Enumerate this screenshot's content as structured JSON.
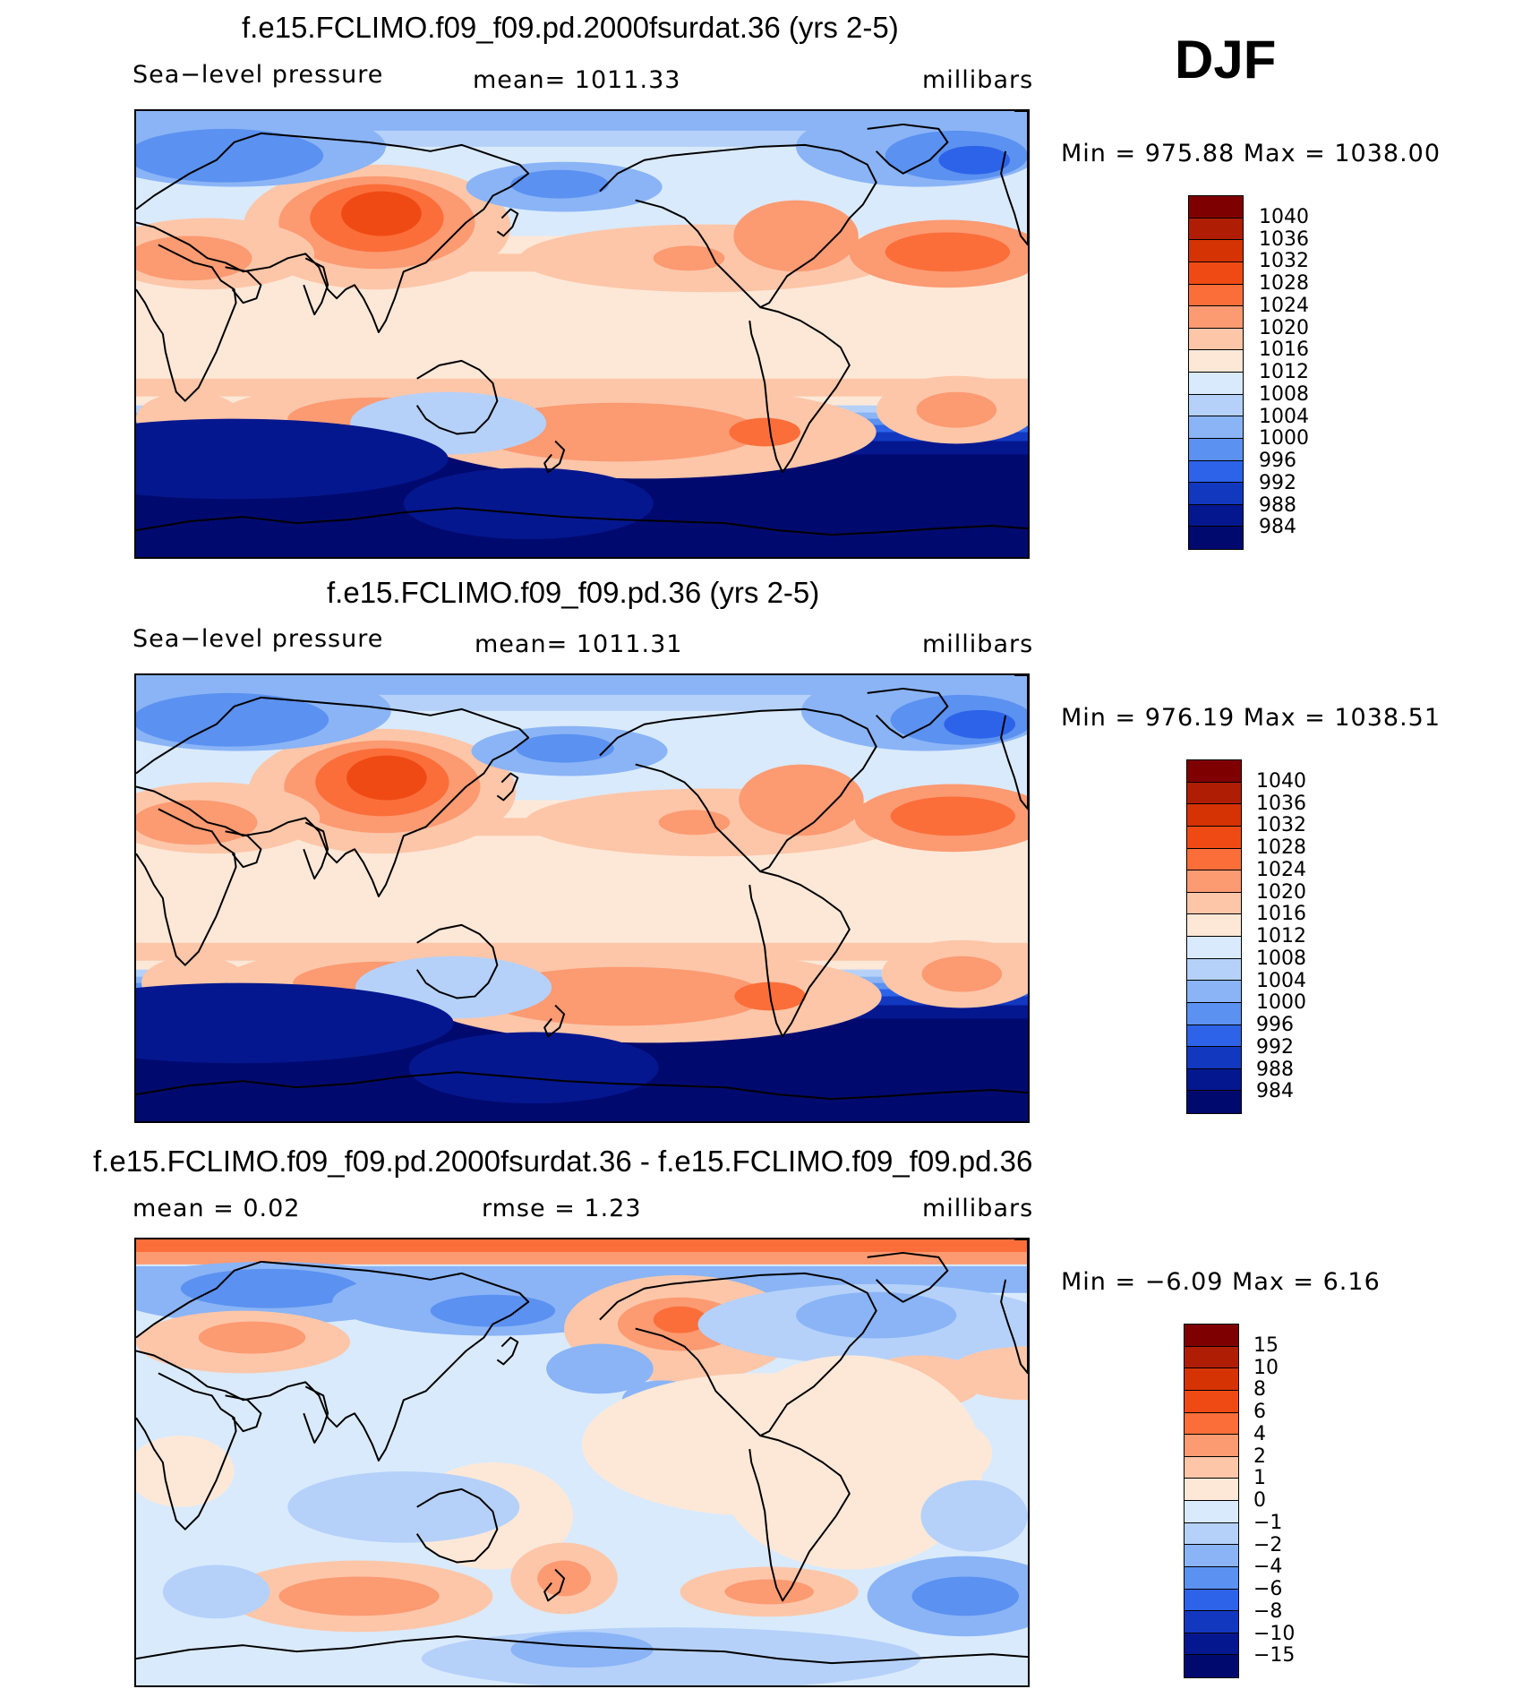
{
  "season": "DJF",
  "panels": [
    {
      "title": "f.e15.FCLIMO.f09_f09.pd.2000fsurdat.36 (yrs 2-5)",
      "left_label": "Sea−level pressure",
      "center_label": "mean=  1011.33",
      "right_label": "millibars",
      "minmax": "Min  =  975.88  Max  =  1038.00",
      "scale": "abs",
      "variant": 0
    },
    {
      "title": "f.e15.FCLIMO.f09_f09.pd.36 (yrs 2-5)",
      "left_label": "Sea−level pressure",
      "center_label": "mean=  1011.31",
      "right_label": "millibars",
      "minmax": "Min  =  976.19  Max  =  1038.51",
      "scale": "abs",
      "variant": 1
    },
    {
      "title": "f.e15.FCLIMO.f09_f09.pd.2000fsurdat.36 - f.e15.FCLIMO.f09_f09.pd.36",
      "left_label": "mean  =      0.02",
      "center_label": "rmse  =      1.23",
      "right_label": "millibars",
      "minmax": "Min  =    −6.09  Max  =      6.16",
      "scale": "diff",
      "variant": 2
    }
  ],
  "colorbars": {
    "abs": {
      "labels": [
        "1040",
        "1036",
        "1032",
        "1028",
        "1024",
        "1020",
        "1016",
        "1012",
        "1008",
        "1004",
        "1000",
        "996",
        "992",
        "988",
        "984"
      ],
      "colors": [
        "#7f0000",
        "#b01d05",
        "#d63305",
        "#f04a14",
        "#fb6e3a",
        "#fc9a72",
        "#fdc6a8",
        "#fde8d8",
        "#d9eafc",
        "#b5d1fa",
        "#8ab4f6",
        "#5b91f0",
        "#2d63e8",
        "#1238c0",
        "#05178f",
        "#000a6e"
      ]
    },
    "diff": {
      "labels": [
        "15",
        "10",
        "8",
        "6",
        "4",
        "2",
        "1",
        "0",
        "−1",
        "−2",
        "−4",
        "−6",
        "−8",
        "−10",
        "−15"
      ],
      "colors": [
        "#7f0000",
        "#b01d05",
        "#d63305",
        "#f04a14",
        "#fb6e3a",
        "#fc9a72",
        "#fdc6a8",
        "#fde8d8",
        "#d9eafc",
        "#b5d1fa",
        "#8ab4f6",
        "#5b91f0",
        "#2d63e8",
        "#1238c0",
        "#05178f",
        "#000a6e"
      ]
    }
  }
}
